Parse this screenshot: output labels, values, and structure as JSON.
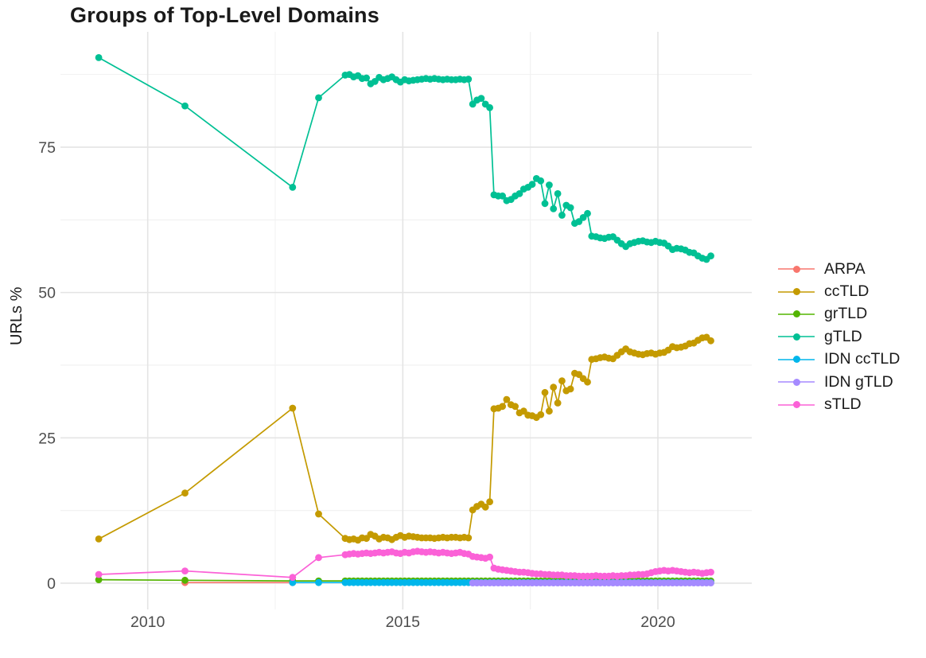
{
  "title": "Groups of Top-Level Domains",
  "chart_data": {
    "type": "line",
    "title": "Groups of Top-Level Domains",
    "xlabel": "",
    "ylabel": "URLs %",
    "x_range": [
      2008.29,
      2021.84
    ],
    "y_range": [
      -4.52,
      94.84
    ],
    "x_ticks": [
      2010,
      2015,
      2020
    ],
    "y_ticks": [
      0,
      25,
      50,
      75
    ],
    "x_minor_ticks": [
      2012.5,
      2017.5
    ],
    "y_minor_ticks": [
      12.5,
      37.5,
      62.5,
      87.5
    ],
    "grid": true,
    "legend_position": "right",
    "series": [
      {
        "name": "ARPA",
        "color": "#F8766D",
        "segments": [
          {
            "points": [
              [
                2010.73,
                0.1
              ],
              [
                2012.84,
                0.1
              ]
            ]
          }
        ]
      },
      {
        "name": "ccTLD",
        "color": "#C49A00",
        "segments": [
          {
            "points": [
              [
                2009.04,
                7.6
              ],
              [
                2010.73,
                15.5
              ],
              [
                2012.84,
                30.1
              ],
              [
                2013.35,
                11.9
              ]
            ]
          },
          {
            "start": 2013.87,
            "step": 0.08333,
            "values": [
              7.7,
              7.5,
              7.6,
              7.4,
              7.8,
              7.7,
              8.4,
              8.1,
              7.6,
              7.9,
              7.8,
              7.5,
              7.9,
              8.2,
              7.9,
              8.1,
              8.0,
              7.9,
              7.8,
              7.8,
              7.8,
              7.7,
              7.8,
              7.9,
              7.8,
              7.9,
              7.9,
              7.8,
              7.9,
              7.8,
              12.6,
              13.2,
              13.6,
              13.1,
              14.0,
              30.0,
              30.1,
              30.4,
              31.6,
              30.7,
              30.4,
              29.3,
              29.6,
              28.9,
              28.8,
              28.5,
              29.0,
              32.8,
              29.6,
              33.7,
              31.0,
              34.8,
              33.1,
              33.4,
              36.1,
              35.9,
              35.2,
              34.6,
              38.5,
              38.6,
              38.8,
              38.9,
              38.7,
              38.6,
              39.2,
              39.8,
              40.3,
              39.8,
              39.6,
              39.4,
              39.3,
              39.5,
              39.6,
              39.4,
              39.6,
              39.7,
              40.1,
              40.7,
              40.5,
              40.6,
              40.8,
              41.2,
              41.3,
              41.8,
              42.2,
              42.3,
              41.7
            ]
          }
        ]
      },
      {
        "name": "grTLD",
        "color": "#53B400",
        "segments": [
          {
            "points": [
              [
                2009.04,
                0.6
              ],
              [
                2010.73,
                0.5
              ],
              [
                2012.84,
                0.4
              ],
              [
                2013.35,
                0.4
              ]
            ]
          },
          {
            "start": 2013.87,
            "step": 0.08333,
            "const": 0.4,
            "count": 87
          }
        ]
      },
      {
        "name": "gTLD",
        "color": "#00C094",
        "segments": [
          {
            "points": [
              [
                2009.04,
                90.4
              ],
              [
                2010.73,
                82.1
              ],
              [
                2012.84,
                68.1
              ],
              [
                2013.35,
                83.5
              ]
            ]
          },
          {
            "start": 2013.87,
            "step": 0.08333,
            "values": [
              87.4,
              87.5,
              87.1,
              87.3,
              86.8,
              86.9,
              85.9,
              86.3,
              87.0,
              86.6,
              86.8,
              87.1,
              86.6,
              86.2,
              86.6,
              86.4,
              86.5,
              86.6,
              86.7,
              86.8,
              86.7,
              86.8,
              86.7,
              86.6,
              86.7,
              86.6,
              86.6,
              86.7,
              86.6,
              86.7,
              82.4,
              83.1,
              83.4,
              82.4,
              81.8,
              66.8,
              66.6,
              66.6,
              65.8,
              66.0,
              66.6,
              67.0,
              67.8,
              68.1,
              68.6,
              69.6,
              69.2,
              65.3,
              68.5,
              64.4,
              67.0,
              63.3,
              65.0,
              64.6,
              61.9,
              62.2,
              62.9,
              63.6,
              59.7,
              59.6,
              59.4,
              59.3,
              59.5,
              59.6,
              59.0,
              58.4,
              57.9,
              58.4,
              58.6,
              58.8,
              58.9,
              58.7,
              58.6,
              58.8,
              58.6,
              58.5,
              58.0,
              57.4,
              57.6,
              57.5,
              57.3,
              56.9,
              56.8,
              56.3,
              55.9,
              55.7,
              56.3
            ]
          }
        ]
      },
      {
        "name": "IDN ccTLD",
        "color": "#00B6EB",
        "segments": [
          {
            "points": [
              [
                2012.84,
                0.1
              ],
              [
                2013.35,
                0.1
              ]
            ]
          },
          {
            "start": 2013.87,
            "step": 0.08333,
            "const": 0.1,
            "count": 87
          }
        ]
      },
      {
        "name": "IDN gTLD",
        "color": "#A58AFF",
        "segments": [
          {
            "start": 2016.37,
            "step": 0.08333,
            "const": 0.05,
            "count": 57
          }
        ]
      },
      {
        "name": "sTLD",
        "color": "#FB61D7",
        "segments": [
          {
            "points": [
              [
                2009.04,
                1.5
              ],
              [
                2010.73,
                2.1
              ],
              [
                2012.84,
                1.0
              ],
              [
                2013.35,
                4.4
              ]
            ]
          },
          {
            "start": 2013.87,
            "step": 0.08333,
            "values": [
              4.9,
              5.0,
              5.1,
              5.0,
              5.1,
              5.2,
              5.1,
              5.2,
              5.3,
              5.2,
              5.3,
              5.4,
              5.2,
              5.1,
              5.3,
              5.2,
              5.4,
              5.5,
              5.4,
              5.3,
              5.4,
              5.3,
              5.2,
              5.3,
              5.2,
              5.1,
              5.2,
              5.3,
              5.1,
              5.0,
              4.6,
              4.5,
              4.4,
              4.3,
              4.5,
              2.6,
              2.4,
              2.3,
              2.2,
              2.1,
              2.0,
              1.9,
              1.9,
              1.8,
              1.7,
              1.6,
              1.6,
              1.5,
              1.5,
              1.4,
              1.4,
              1.4,
              1.3,
              1.3,
              1.3,
              1.2,
              1.2,
              1.2,
              1.2,
              1.3,
              1.2,
              1.2,
              1.2,
              1.3,
              1.2,
              1.3,
              1.3,
              1.4,
              1.4,
              1.5,
              1.5,
              1.6,
              1.8,
              2.0,
              2.1,
              2.2,
              2.1,
              2.2,
              2.1,
              2.0,
              1.9,
              1.8,
              1.9,
              1.8,
              1.7,
              1.8,
              1.9
            ]
          }
        ]
      }
    ],
    "style": {
      "grid_major_color": "#e4e4e4",
      "grid_minor_color": "#f1f1f1",
      "axis_text_color": "#4d4d4d",
      "point_radius": 4.4,
      "line_width": 1.7
    }
  }
}
